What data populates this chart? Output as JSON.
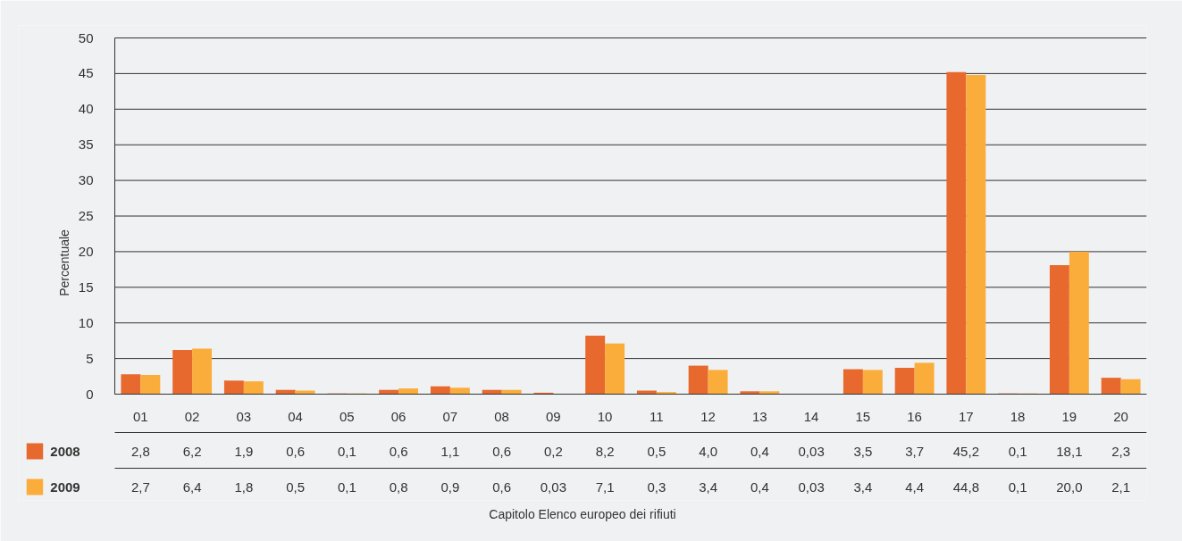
{
  "chart_data": {
    "type": "bar",
    "annotations": [
      "Capitolo Elenco europeo dei rifiuti"
    ],
    "ylabel": "Percentuale",
    "categories": [
      "01",
      "02",
      "03",
      "04",
      "05",
      "06",
      "07",
      "08",
      "09",
      "10",
      "11",
      "12",
      "13",
      "14",
      "15",
      "16",
      "17",
      "18",
      "19",
      "20"
    ],
    "series": [
      {
        "name": "2008",
        "color": "#e8692e",
        "values": [
          2.8,
          6.2,
          1.9,
          0.6,
          0.1,
          0.6,
          1.1,
          0.6,
          0.2,
          8.2,
          0.5,
          4.0,
          0.4,
          0.03,
          3.5,
          3.7,
          45.2,
          0.1,
          18.1,
          2.3
        ],
        "value_labels": [
          "2,8",
          "6,2",
          "1,9",
          "0,6",
          "0,1",
          "0,6",
          "1,1",
          "0,6",
          "0,2",
          "8,2",
          "0,5",
          "4,0",
          "0,4",
          "0,03",
          "3,5",
          "3,7",
          "45,2",
          "0,1",
          "18,1",
          "2,3"
        ]
      },
      {
        "name": "2009",
        "color": "#fbad3c",
        "values": [
          2.7,
          6.4,
          1.8,
          0.5,
          0.1,
          0.8,
          0.9,
          0.6,
          0.03,
          7.1,
          0.3,
          3.4,
          0.4,
          0.03,
          3.4,
          4.4,
          44.8,
          0.1,
          20.0,
          2.1
        ],
        "value_labels": [
          "2,7",
          "6,4",
          "1,8",
          "0,5",
          "0,1",
          "0,8",
          "0,9",
          "0,6",
          "0,03",
          "7,1",
          "0,3",
          "3,4",
          "0,4",
          "0,03",
          "3,4",
          "4,4",
          "44,8",
          "0,1",
          "20,0",
          "2,1"
        ]
      }
    ],
    "ylim": [
      0,
      50
    ],
    "yticks": [
      0,
      5,
      10,
      15,
      20,
      25,
      30,
      35,
      40,
      45,
      50
    ],
    "grid": "y",
    "legend": "bottom left"
  }
}
